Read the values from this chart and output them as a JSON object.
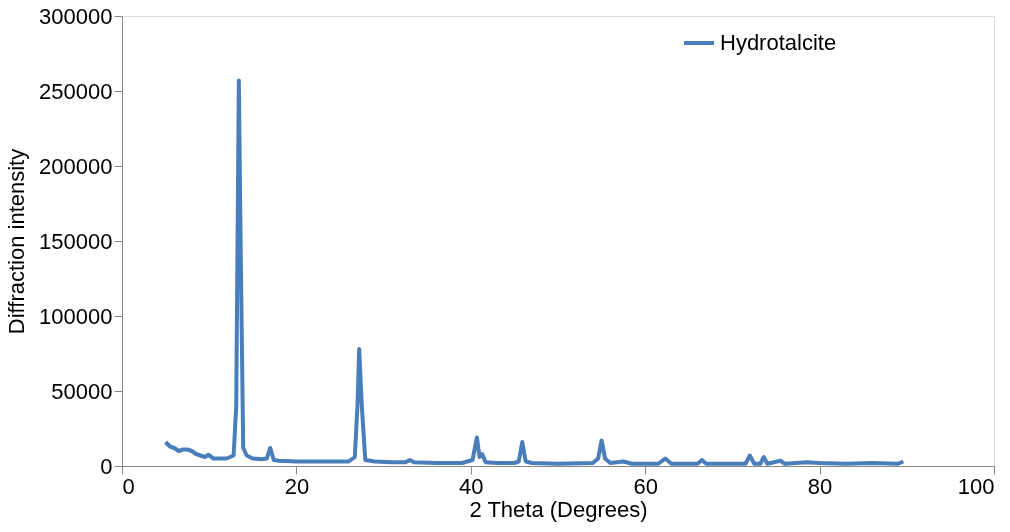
{
  "chart_data": {
    "type": "line",
    "xlabel": "2 Theta (Degrees)",
    "ylabel": "Diffraction intensity",
    "x": [
      5,
      5.5,
      6,
      6.5,
      7,
      7.5,
      8,
      8.5,
      9,
      9.5,
      9.9,
      10.5,
      11,
      12,
      12.8,
      13.1,
      13.4,
      13.6,
      13.9,
      14.3,
      15,
      16,
      16.6,
      17,
      17.4,
      18,
      20,
      22,
      24,
      26,
      26.7,
      27.0,
      27.2,
      27.5,
      27.9,
      29,
      31,
      32.5,
      33,
      33.5,
      36,
      39,
      40.2,
      40.7,
      41.0,
      41.3,
      41.7,
      43,
      45,
      45.5,
      45.9,
      46.3,
      47,
      50,
      54,
      54.6,
      55,
      55.4,
      56,
      57.5,
      58.5,
      61.5,
      62.3,
      63,
      66,
      66.5,
      67,
      71.5,
      72,
      72.5,
      73.2,
      73.6,
      74,
      75.5,
      76,
      78.5,
      80,
      83,
      86,
      89,
      89.6
    ],
    "series": [
      {
        "name": "Hydrotalcite",
        "color": "#4a7ebb",
        "values": [
          16000,
          13000,
          12000,
          10000,
          11000,
          11000,
          10000,
          8000,
          7000,
          6000,
          7500,
          5000,
          5000,
          5000,
          7000,
          40000,
          257000,
          150000,
          12000,
          7000,
          5000,
          4500,
          5000,
          12000,
          4000,
          3500,
          3000,
          3000,
          3000,
          3000,
          6000,
          40000,
          78000,
          40000,
          4000,
          3000,
          2500,
          2500,
          4000,
          2500,
          2000,
          2000,
          4000,
          19000,
          6000,
          8000,
          2500,
          2000,
          2000,
          3000,
          16000,
          3000,
          2000,
          1500,
          2000,
          5000,
          17000,
          5000,
          2000,
          3000,
          1500,
          1500,
          5000,
          1500,
          1500,
          4000,
          1500,
          1500,
          7000,
          1500,
          1500,
          6000,
          1500,
          3500,
          1500,
          2500,
          2000,
          1500,
          2000,
          1500,
          3000
        ]
      }
    ],
    "xlim": [
      0,
      100
    ],
    "xticks": [
      0,
      20,
      40,
      60,
      80,
      100
    ],
    "ylim": [
      0,
      300000
    ],
    "yticks": [
      0,
      50000,
      100000,
      150000,
      200000,
      250000,
      300000
    ],
    "grid": false,
    "legend": "top right",
    "marker": "none",
    "line_style": "solid"
  }
}
